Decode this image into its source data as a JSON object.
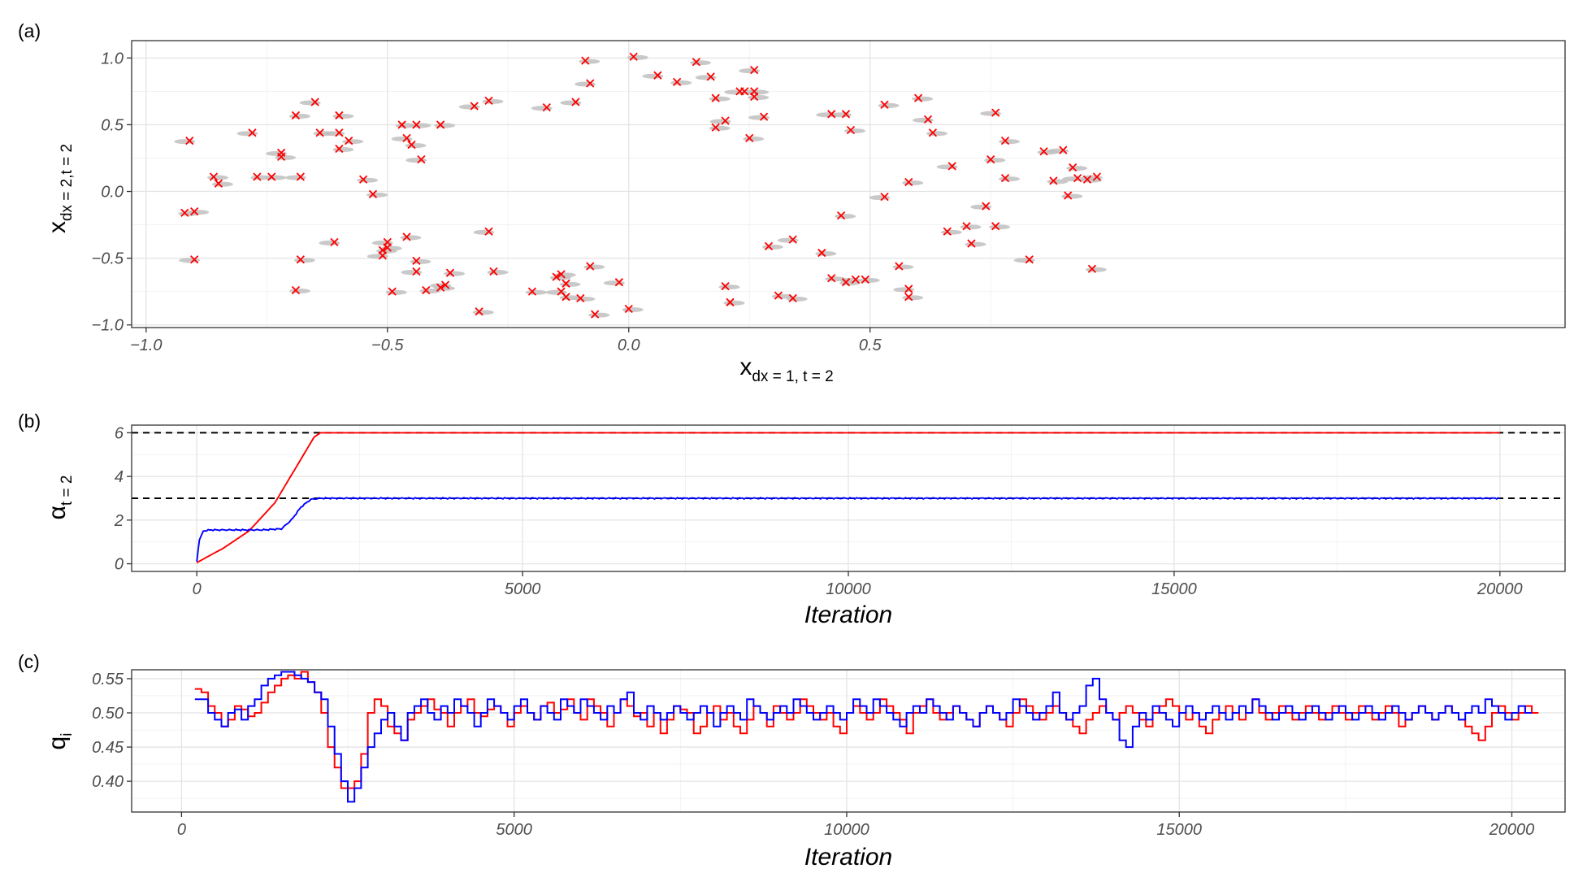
{
  "chart_data": [
    {
      "panel": "(a)",
      "type": "scatter",
      "xlabel_main": "x",
      "xlabel_sub": "dx = 1, t = 2",
      "ylabel_main": "x",
      "ylabel_sub": "dx = 2,t = 2",
      "xlim": [
        -1.03,
        1.94
      ],
      "ylim": [
        -1.02,
        1.13
      ],
      "xticks": [
        {
          "v": -1,
          "label": "−1.0"
        },
        {
          "v": -0.5,
          "label": "−0.5"
        },
        {
          "v": 0,
          "label": "0.0"
        },
        {
          "v": 0.5,
          "label": "0.5"
        }
      ],
      "yticks": [
        {
          "v": -1,
          "label": "−1.0"
        },
        {
          "v": -0.5,
          "label": "−0.5"
        },
        {
          "v": 0,
          "label": "0.0"
        },
        {
          "v": 0.5,
          "label": "0.5"
        },
        {
          "v": 1,
          "label": "1.0"
        }
      ],
      "marker_color": "#ff0000",
      "cloud_color": "#bfbfbf",
      "points": [
        [
          -0.91,
          0.38
        ],
        [
          -0.92,
          -0.16
        ],
        [
          -0.9,
          -0.15
        ],
        [
          -0.9,
          -0.51
        ],
        [
          -0.86,
          0.11
        ],
        [
          -0.85,
          0.06
        ],
        [
          -0.78,
          0.44
        ],
        [
          -0.77,
          0.11
        ],
        [
          -0.74,
          0.11
        ],
        [
          -0.72,
          0.29
        ],
        [
          -0.72,
          0.26
        ],
        [
          -0.69,
          0.57
        ],
        [
          -0.68,
          0.11
        ],
        [
          -0.68,
          -0.51
        ],
        [
          -0.69,
          -0.74
        ],
        [
          -0.65,
          0.67
        ],
        [
          -0.64,
          0.44
        ],
        [
          -0.6,
          0.57
        ],
        [
          -0.6,
          0.44
        ],
        [
          -0.6,
          0.32
        ],
        [
          -0.58,
          0.38
        ],
        [
          -0.61,
          -0.38
        ],
        [
          -0.55,
          0.09
        ],
        [
          -0.53,
          -0.02
        ],
        [
          -0.5,
          -0.38
        ],
        [
          -0.5,
          -0.42
        ],
        [
          -0.51,
          -0.44
        ],
        [
          -0.51,
          -0.48
        ],
        [
          -0.49,
          -0.75
        ],
        [
          -0.47,
          0.5
        ],
        [
          -0.46,
          0.4
        ],
        [
          -0.45,
          0.35
        ],
        [
          -0.44,
          0.5
        ],
        [
          -0.43,
          0.24
        ],
        [
          -0.46,
          -0.34
        ],
        [
          -0.44,
          -0.52
        ],
        [
          -0.44,
          -0.6
        ],
        [
          -0.42,
          -0.74
        ],
        [
          -0.39,
          -0.72
        ],
        [
          -0.38,
          -0.7
        ],
        [
          -0.37,
          -0.61
        ],
        [
          -0.39,
          0.5
        ],
        [
          -0.32,
          0.64
        ],
        [
          -0.31,
          -0.9
        ],
        [
          -0.29,
          0.68
        ],
        [
          -0.29,
          -0.3
        ],
        [
          -0.28,
          -0.6
        ],
        [
          -0.2,
          -0.75
        ],
        [
          -0.17,
          0.63
        ],
        [
          -0.15,
          -0.64
        ],
        [
          -0.14,
          -0.62
        ],
        [
          -0.14,
          -0.75
        ],
        [
          -0.13,
          -0.69
        ],
        [
          -0.13,
          -0.79
        ],
        [
          -0.11,
          0.67
        ],
        [
          -0.1,
          -0.8
        ],
        [
          -0.09,
          0.98
        ],
        [
          -0.08,
          0.81
        ],
        [
          -0.08,
          -0.56
        ],
        [
          -0.07,
          -0.92
        ],
        [
          -0.02,
          -0.68
        ],
        [
          0.0,
          -0.88
        ],
        [
          0.01,
          1.01
        ],
        [
          0.06,
          0.87
        ],
        [
          0.1,
          0.82
        ],
        [
          0.14,
          0.97
        ],
        [
          0.17,
          0.86
        ],
        [
          0.18,
          0.7
        ],
        [
          0.18,
          0.48
        ],
        [
          0.2,
          0.53
        ],
        [
          0.2,
          -0.71
        ],
        [
          0.21,
          -0.83
        ],
        [
          0.23,
          0.75
        ],
        [
          0.24,
          0.75
        ],
        [
          0.25,
          0.4
        ],
        [
          0.26,
          0.91
        ],
        [
          0.26,
          0.75
        ],
        [
          0.26,
          0.71
        ],
        [
          0.28,
          0.56
        ],
        [
          0.29,
          -0.41
        ],
        [
          0.31,
          -0.78
        ],
        [
          0.34,
          -0.36
        ],
        [
          0.34,
          -0.8
        ],
        [
          0.4,
          -0.46
        ],
        [
          0.42,
          0.58
        ],
        [
          0.42,
          -0.65
        ],
        [
          0.44,
          -0.18
        ],
        [
          0.45,
          0.58
        ],
        [
          0.45,
          -0.68
        ],
        [
          0.46,
          0.46
        ],
        [
          0.47,
          -0.66
        ],
        [
          0.49,
          -0.66
        ],
        [
          0.53,
          0.65
        ],
        [
          0.53,
          -0.04
        ],
        [
          0.56,
          -0.56
        ],
        [
          0.58,
          0.07
        ],
        [
          0.58,
          -0.73
        ],
        [
          0.58,
          -0.79
        ],
        [
          0.6,
          0.7
        ],
        [
          0.62,
          0.54
        ],
        [
          0.63,
          0.44
        ],
        [
          0.66,
          -0.3
        ],
        [
          0.67,
          0.19
        ],
        [
          0.7,
          -0.26
        ],
        [
          0.71,
          -0.39
        ],
        [
          0.74,
          -0.11
        ],
        [
          0.75,
          0.24
        ],
        [
          0.76,
          -0.26
        ],
        [
          0.76,
          0.59
        ],
        [
          0.78,
          0.38
        ],
        [
          0.78,
          0.1
        ],
        [
          0.83,
          -0.51
        ],
        [
          0.86,
          0.3
        ],
        [
          0.88,
          0.08
        ],
        [
          0.9,
          0.31
        ],
        [
          0.91,
          -0.03
        ],
        [
          0.92,
          0.18
        ],
        [
          0.93,
          0.1
        ],
        [
          0.95,
          0.09
        ],
        [
          0.96,
          -0.58
        ],
        [
          0.97,
          0.11
        ]
      ]
    },
    {
      "panel": "(b)",
      "type": "line",
      "xlabel": "Iteration",
      "ylabel_main": "α",
      "ylabel_sub": "t = 2",
      "xlim": [
        -1000,
        21000
      ],
      "ylim": [
        -0.35,
        6.35
      ],
      "xticks": [
        {
          "v": 0,
          "label": "0"
        },
        {
          "v": 5000,
          "label": "5000"
        },
        {
          "v": 10000,
          "label": "10000"
        },
        {
          "v": 15000,
          "label": "15000"
        },
        {
          "v": 20000,
          "label": "20000"
        }
      ],
      "yticks": [
        {
          "v": 0,
          "label": "0"
        },
        {
          "v": 2,
          "label": "2"
        },
        {
          "v": 4,
          "label": "4"
        },
        {
          "v": 6,
          "label": "6"
        }
      ],
      "reference_lines": [
        6,
        3
      ],
      "series": [
        {
          "name": "red",
          "color": "#ff0000",
          "points": [
            [
              0,
              0.05
            ],
            [
              150,
              0.3
            ],
            [
              400,
              0.7
            ],
            [
              800,
              1.5
            ],
            [
              1200,
              2.8
            ],
            [
              1600,
              4.8
            ],
            [
              1800,
              5.8
            ],
            [
              1900,
              6
            ],
            [
              20000,
              6
            ]
          ]
        },
        {
          "name": "blue",
          "color": "#0000ff",
          "points": [
            [
              0,
              0.1
            ],
            [
              40,
              1.1
            ],
            [
              100,
              1.5
            ],
            [
              200,
              1.55
            ],
            [
              600,
              1.55
            ],
            [
              1000,
              1.55
            ],
            [
              1300,
              1.6
            ],
            [
              1450,
              2.0
            ],
            [
              1600,
              2.6
            ],
            [
              1750,
              2.95
            ],
            [
              1900,
              3.0
            ],
            [
              20000,
              3.0
            ]
          ]
        }
      ]
    },
    {
      "panel": "(c)",
      "type": "line",
      "step": true,
      "xlabel": "Iteration",
      "ylabel_main": "q",
      "ylabel_sub": "i",
      "xlim": [
        -750,
        20800
      ],
      "ylim": [
        0.355,
        0.563
      ],
      "xticks": [
        {
          "v": 0,
          "label": "0"
        },
        {
          "v": 5000,
          "label": "5000"
        },
        {
          "v": 10000,
          "label": "10000"
        },
        {
          "v": 15000,
          "label": "15000"
        },
        {
          "v": 20000,
          "label": "20000"
        }
      ],
      "yticks": [
        {
          "v": 0.4,
          "label": "0.40"
        },
        {
          "v": 0.45,
          "label": "0.45"
        },
        {
          "v": 0.5,
          "label": "0.50"
        },
        {
          "v": 0.55,
          "label": "0.55"
        }
      ],
      "step_width": 100,
      "x_start": 200,
      "series": [
        {
          "name": "red",
          "color": "#ff0000",
          "values": [
            0.535,
            0.53,
            0.51,
            0.5,
            0.48,
            0.49,
            0.51,
            0.505,
            0.495,
            0.5,
            0.515,
            0.53,
            0.54,
            0.55,
            0.555,
            0.55,
            0.56,
            0.545,
            0.53,
            0.5,
            0.45,
            0.42,
            0.39,
            0.39,
            0.4,
            0.44,
            0.5,
            0.52,
            0.51,
            0.48,
            0.47,
            0.46,
            0.49,
            0.5,
            0.51,
            0.52,
            0.505,
            0.5,
            0.48,
            0.5,
            0.51,
            0.52,
            0.5,
            0.495,
            0.505,
            0.51,
            0.5,
            0.48,
            0.5,
            0.51,
            0.5,
            0.49,
            0.51,
            0.515,
            0.5,
            0.505,
            0.52,
            0.5,
            0.49,
            0.52,
            0.51,
            0.5,
            0.48,
            0.5,
            0.52,
            0.51,
            0.495,
            0.5,
            0.48,
            0.5,
            0.47,
            0.49,
            0.51,
            0.505,
            0.5,
            0.47,
            0.48,
            0.5,
            0.51,
            0.49,
            0.5,
            0.48,
            0.47,
            0.49,
            0.51,
            0.5,
            0.48,
            0.51,
            0.5,
            0.49,
            0.5,
            0.52,
            0.51,
            0.5,
            0.49,
            0.5,
            0.48,
            0.47,
            0.5,
            0.51,
            0.5,
            0.49,
            0.5,
            0.52,
            0.51,
            0.5,
            0.49,
            0.47,
            0.5,
            0.51,
            0.52,
            0.5,
            0.49,
            0.5,
            0.51,
            0.5,
            0.49,
            0.48,
            0.5,
            0.51,
            0.5,
            0.49,
            0.48,
            0.5,
            0.52,
            0.51,
            0.5,
            0.49,
            0.5,
            0.51,
            0.5,
            0.49,
            0.48,
            0.47,
            0.49,
            0.5,
            0.51,
            0.5,
            0.49,
            0.5,
            0.51,
            0.5,
            0.49,
            0.48,
            0.5,
            0.51,
            0.52,
            0.51,
            0.5,
            0.49,
            0.5,
            0.48,
            0.47,
            0.49,
            0.5,
            0.51,
            0.5,
            0.49,
            0.5,
            0.52,
            0.5,
            0.49,
            0.5,
            0.51,
            0.5,
            0.49,
            0.5,
            0.51,
            0.5,
            0.49,
            0.5,
            0.51,
            0.5,
            0.49,
            0.5,
            0.51,
            0.5,
            0.49,
            0.5,
            0.51,
            0.5,
            0.48,
            0.49,
            0.5,
            0.51,
            0.5,
            0.49,
            0.5,
            0.51,
            0.5,
            0.49,
            0.48,
            0.47,
            0.46,
            0.48,
            0.5,
            0.51,
            0.5,
            0.49,
            0.5,
            0.51,
            0.5
          ]
        },
        {
          "name": "blue",
          "color": "#0000ff",
          "values": [
            0.52,
            0.52,
            0.5,
            0.49,
            0.48,
            0.5,
            0.505,
            0.49,
            0.51,
            0.52,
            0.54,
            0.55,
            0.555,
            0.56,
            0.56,
            0.555,
            0.55,
            0.545,
            0.53,
            0.52,
            0.48,
            0.44,
            0.4,
            0.37,
            0.39,
            0.42,
            0.45,
            0.47,
            0.49,
            0.5,
            0.48,
            0.46,
            0.5,
            0.51,
            0.52,
            0.5,
            0.49,
            0.51,
            0.5,
            0.52,
            0.51,
            0.5,
            0.48,
            0.5,
            0.52,
            0.51,
            0.5,
            0.49,
            0.51,
            0.52,
            0.5,
            0.49,
            0.51,
            0.5,
            0.49,
            0.52,
            0.51,
            0.5,
            0.52,
            0.51,
            0.5,
            0.49,
            0.51,
            0.5,
            0.52,
            0.53,
            0.5,
            0.49,
            0.51,
            0.5,
            0.49,
            0.5,
            0.51,
            0.5,
            0.49,
            0.5,
            0.51,
            0.5,
            0.48,
            0.5,
            0.51,
            0.5,
            0.49,
            0.52,
            0.51,
            0.5,
            0.49,
            0.5,
            0.51,
            0.5,
            0.52,
            0.51,
            0.5,
            0.49,
            0.5,
            0.51,
            0.5,
            0.49,
            0.5,
            0.52,
            0.51,
            0.5,
            0.52,
            0.51,
            0.5,
            0.49,
            0.48,
            0.5,
            0.51,
            0.5,
            0.52,
            0.51,
            0.5,
            0.49,
            0.51,
            0.5,
            0.49,
            0.48,
            0.5,
            0.51,
            0.5,
            0.49,
            0.5,
            0.52,
            0.51,
            0.5,
            0.49,
            0.5,
            0.51,
            0.53,
            0.5,
            0.49,
            0.5,
            0.51,
            0.54,
            0.55,
            0.52,
            0.5,
            0.49,
            0.46,
            0.45,
            0.48,
            0.5,
            0.49,
            0.51,
            0.5,
            0.49,
            0.48,
            0.5,
            0.51,
            0.5,
            0.49,
            0.5,
            0.51,
            0.5,
            0.49,
            0.5,
            0.51,
            0.5,
            0.52,
            0.51,
            0.5,
            0.49,
            0.5,
            0.51,
            0.5,
            0.49,
            0.5,
            0.51,
            0.5,
            0.49,
            0.5,
            0.51,
            0.5,
            0.49,
            0.5,
            0.51,
            0.5,
            0.49,
            0.5,
            0.51,
            0.5,
            0.49,
            0.5,
            0.51,
            0.5,
            0.49,
            0.5,
            0.51,
            0.5,
            0.49,
            0.5,
            0.51,
            0.5,
            0.52,
            0.51,
            0.5,
            0.49,
            0.5,
            0.51,
            0.5
          ]
        }
      ]
    }
  ]
}
